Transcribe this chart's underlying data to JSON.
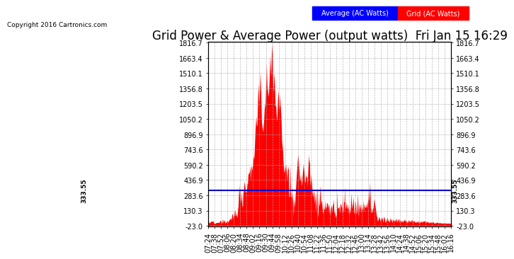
{
  "title": "Grid Power & Average Power (output watts)  Fri Jan 15 16:29",
  "copyright": "Copyright 2016 Cartronics.com",
  "legend_labels": [
    "Average (AC Watts)",
    "Grid (AC Watts)"
  ],
  "average_value": 333.55,
  "y_tick_values": [
    -23.0,
    130.3,
    283.6,
    436.9,
    590.2,
    743.6,
    896.9,
    1050.2,
    1203.5,
    1356.8,
    1510.1,
    1663.4,
    1816.7
  ],
  "y_min": -23.0,
  "y_max": 1816.7,
  "background_color": "#ffffff",
  "grid_color": "#aaaaaa",
  "fill_color": "#ff0000",
  "avg_line_color": "#0000cc",
  "title_fontsize": 12,
  "tick_label_fontsize": 7,
  "x_tick_labels": [
    "07:24",
    "07:38",
    "07:52",
    "08:06",
    "08:20",
    "08:34",
    "08:48",
    "09:02",
    "09:16",
    "09:30",
    "09:44",
    "09:58",
    "10:12",
    "10:26",
    "10:40",
    "10:54",
    "11:08",
    "11:22",
    "11:36",
    "11:50",
    "12:04",
    "12:18",
    "12:32",
    "12:46",
    "13:00",
    "13:14",
    "13:28",
    "13:42",
    "13:56",
    "14:10",
    "14:24",
    "14:38",
    "14:52",
    "15:06",
    "15:20",
    "15:34",
    "15:48",
    "16:02",
    "16:16"
  ]
}
